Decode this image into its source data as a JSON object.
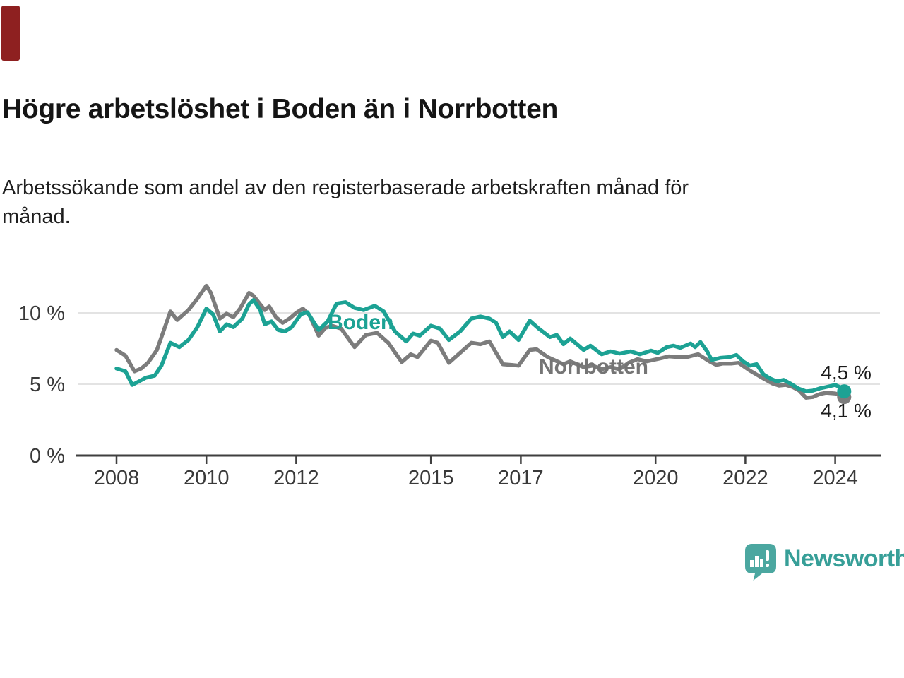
{
  "corner_marker": {
    "color": "#8E2020"
  },
  "header": {
    "title": "Högre arbetslöshet i Boden än i Norrbotten",
    "subtitle_line1": "Arbetssökande som andel av den registerbaserade arbetskraften månad för",
    "subtitle_line2": "månad."
  },
  "chart_data": {
    "type": "line",
    "title": "Högre arbetslöshet i Boden än i Norrbotten",
    "xlabel": "",
    "ylabel": "",
    "unit": "%",
    "grid": "horizontal",
    "legend_position": "inline-labels",
    "xlim": [
      2007.1,
      2025.0
    ],
    "ylim": [
      0,
      12.6
    ],
    "y_axis": {
      "ticks": [
        {
          "label": "10 %",
          "value": 10,
          "gridline": true
        },
        {
          "label": "5 %",
          "value": 5,
          "gridline": true
        },
        {
          "label": "0 %",
          "value": 0,
          "gridline": false
        }
      ]
    },
    "x_axis": {
      "ticks": [
        {
          "label": "2008",
          "value": 2008
        },
        {
          "label": "2010",
          "value": 2010
        },
        {
          "label": "2012",
          "value": 2012
        },
        {
          "label": "2015",
          "value": 2015
        },
        {
          "label": "2017",
          "value": 2017
        },
        {
          "label": "2020",
          "value": 2020
        },
        {
          "label": "2022",
          "value": 2022
        },
        {
          "label": "2024",
          "value": 2024
        }
      ]
    },
    "series": [
      {
        "name": "Norrbotten",
        "color": "#7C7C7C",
        "label_color": "#757575",
        "end_label": "4,1 %",
        "end_label_side": "below",
        "points": [
          [
            2008.0,
            7.4
          ],
          [
            2008.2,
            7.0
          ],
          [
            2008.4,
            5.9
          ],
          [
            2008.55,
            6.1
          ],
          [
            2008.7,
            6.5
          ],
          [
            2008.9,
            7.4
          ],
          [
            2009.0,
            8.3
          ],
          [
            2009.2,
            10.1
          ],
          [
            2009.35,
            9.5
          ],
          [
            2009.6,
            10.2
          ],
          [
            2009.8,
            11.0
          ],
          [
            2010.0,
            11.9
          ],
          [
            2010.1,
            11.4
          ],
          [
            2010.3,
            9.6
          ],
          [
            2010.45,
            9.95
          ],
          [
            2010.6,
            9.7
          ],
          [
            2010.75,
            10.3
          ],
          [
            2010.95,
            11.4
          ],
          [
            2011.05,
            11.2
          ],
          [
            2011.2,
            10.6
          ],
          [
            2011.3,
            10.2
          ],
          [
            2011.4,
            10.45
          ],
          [
            2011.55,
            9.7
          ],
          [
            2011.7,
            9.3
          ],
          [
            2011.85,
            9.6
          ],
          [
            2012.0,
            10.0
          ],
          [
            2012.15,
            10.3
          ],
          [
            2012.3,
            9.8
          ],
          [
            2012.5,
            8.4
          ],
          [
            2012.65,
            8.95
          ],
          [
            2012.8,
            9.1
          ],
          [
            2013.0,
            8.9
          ],
          [
            2013.3,
            7.6
          ],
          [
            2013.55,
            8.45
          ],
          [
            2013.8,
            8.6
          ],
          [
            2014.05,
            7.9
          ],
          [
            2014.35,
            6.55
          ],
          [
            2014.55,
            7.1
          ],
          [
            2014.7,
            6.9
          ],
          [
            2015.0,
            8.05
          ],
          [
            2015.15,
            7.9
          ],
          [
            2015.4,
            6.5
          ],
          [
            2015.65,
            7.2
          ],
          [
            2015.9,
            7.9
          ],
          [
            2016.1,
            7.8
          ],
          [
            2016.3,
            8.0
          ],
          [
            2016.6,
            6.4
          ],
          [
            2016.8,
            6.35
          ],
          [
            2016.95,
            6.3
          ],
          [
            2017.2,
            7.4
          ],
          [
            2017.35,
            7.45
          ],
          [
            2017.6,
            6.9
          ],
          [
            2017.95,
            6.4
          ],
          [
            2018.1,
            6.6
          ],
          [
            2018.4,
            6.2
          ],
          [
            2018.6,
            6.3
          ],
          [
            2018.8,
            6.05
          ],
          [
            2019.0,
            6.2
          ],
          [
            2019.2,
            6.05
          ],
          [
            2019.4,
            6.5
          ],
          [
            2019.6,
            6.75
          ],
          [
            2019.8,
            6.6
          ],
          [
            2020.1,
            6.8
          ],
          [
            2020.3,
            6.95
          ],
          [
            2020.5,
            6.9
          ],
          [
            2020.7,
            6.9
          ],
          [
            2020.95,
            7.1
          ],
          [
            2021.2,
            6.6
          ],
          [
            2021.35,
            6.35
          ],
          [
            2021.5,
            6.45
          ],
          [
            2021.7,
            6.45
          ],
          [
            2021.85,
            6.5
          ],
          [
            2022.1,
            5.95
          ],
          [
            2022.4,
            5.4
          ],
          [
            2022.6,
            5.05
          ],
          [
            2022.75,
            4.9
          ],
          [
            2022.9,
            4.95
          ],
          [
            2023.05,
            4.8
          ],
          [
            2023.2,
            4.55
          ],
          [
            2023.35,
            4.05
          ],
          [
            2023.5,
            4.1
          ],
          [
            2023.65,
            4.3
          ],
          [
            2023.8,
            4.4
          ],
          [
            2024.0,
            4.35
          ],
          [
            2024.2,
            4.1
          ]
        ]
      },
      {
        "name": "Boden",
        "color": "#1CA294",
        "label_color": "#1CA294",
        "end_label": "4,5 %",
        "end_label_side": "above",
        "points": [
          [
            2008.0,
            6.1
          ],
          [
            2008.2,
            5.9
          ],
          [
            2008.35,
            4.95
          ],
          [
            2008.5,
            5.2
          ],
          [
            2008.65,
            5.45
          ],
          [
            2008.85,
            5.6
          ],
          [
            2009.0,
            6.3
          ],
          [
            2009.2,
            7.9
          ],
          [
            2009.4,
            7.6
          ],
          [
            2009.6,
            8.1
          ],
          [
            2009.8,
            9.0
          ],
          [
            2010.0,
            10.3
          ],
          [
            2010.15,
            9.9
          ],
          [
            2010.3,
            8.7
          ],
          [
            2010.45,
            9.2
          ],
          [
            2010.6,
            9.0
          ],
          [
            2010.8,
            9.6
          ],
          [
            2010.95,
            10.6
          ],
          [
            2011.05,
            10.9
          ],
          [
            2011.2,
            10.2
          ],
          [
            2011.3,
            9.2
          ],
          [
            2011.45,
            9.4
          ],
          [
            2011.6,
            8.8
          ],
          [
            2011.75,
            8.7
          ],
          [
            2011.9,
            9.0
          ],
          [
            2012.1,
            9.9
          ],
          [
            2012.25,
            10.05
          ],
          [
            2012.5,
            8.8
          ],
          [
            2012.7,
            9.4
          ],
          [
            2012.9,
            10.65
          ],
          [
            2013.1,
            10.75
          ],
          [
            2013.3,
            10.35
          ],
          [
            2013.5,
            10.2
          ],
          [
            2013.75,
            10.5
          ],
          [
            2013.95,
            10.1
          ],
          [
            2014.2,
            8.7
          ],
          [
            2014.45,
            8.0
          ],
          [
            2014.6,
            8.55
          ],
          [
            2014.75,
            8.4
          ],
          [
            2015.0,
            9.1
          ],
          [
            2015.2,
            8.9
          ],
          [
            2015.4,
            8.1
          ],
          [
            2015.65,
            8.7
          ],
          [
            2015.9,
            9.6
          ],
          [
            2016.1,
            9.75
          ],
          [
            2016.3,
            9.6
          ],
          [
            2016.45,
            9.3
          ],
          [
            2016.6,
            8.3
          ],
          [
            2016.75,
            8.7
          ],
          [
            2016.95,
            8.1
          ],
          [
            2017.2,
            9.45
          ],
          [
            2017.4,
            8.9
          ],
          [
            2017.65,
            8.3
          ],
          [
            2017.8,
            8.45
          ],
          [
            2017.95,
            7.8
          ],
          [
            2018.1,
            8.2
          ],
          [
            2018.4,
            7.4
          ],
          [
            2018.55,
            7.7
          ],
          [
            2018.8,
            7.1
          ],
          [
            2019.0,
            7.3
          ],
          [
            2019.2,
            7.15
          ],
          [
            2019.45,
            7.3
          ],
          [
            2019.65,
            7.1
          ],
          [
            2019.9,
            7.35
          ],
          [
            2020.05,
            7.2
          ],
          [
            2020.25,
            7.6
          ],
          [
            2020.4,
            7.7
          ],
          [
            2020.55,
            7.55
          ],
          [
            2020.78,
            7.85
          ],
          [
            2020.88,
            7.6
          ],
          [
            2021.0,
            7.95
          ],
          [
            2021.15,
            7.3
          ],
          [
            2021.25,
            6.7
          ],
          [
            2021.45,
            6.85
          ],
          [
            2021.65,
            6.9
          ],
          [
            2021.8,
            7.05
          ],
          [
            2021.95,
            6.6
          ],
          [
            2022.1,
            6.3
          ],
          [
            2022.25,
            6.4
          ],
          [
            2022.4,
            5.7
          ],
          [
            2022.55,
            5.4
          ],
          [
            2022.7,
            5.2
          ],
          [
            2022.85,
            5.3
          ],
          [
            2023.0,
            5.05
          ],
          [
            2023.18,
            4.7
          ],
          [
            2023.35,
            4.5
          ],
          [
            2023.5,
            4.55
          ],
          [
            2023.65,
            4.7
          ],
          [
            2023.8,
            4.8
          ],
          [
            2024.0,
            4.95
          ],
          [
            2024.1,
            4.8
          ],
          [
            2024.2,
            4.5
          ]
        ]
      }
    ]
  },
  "footer": {
    "brand": "Newsworthy",
    "brand_color": "#379F98",
    "logo_icon": "newsworthy-speech-bubble-chart-icon"
  }
}
